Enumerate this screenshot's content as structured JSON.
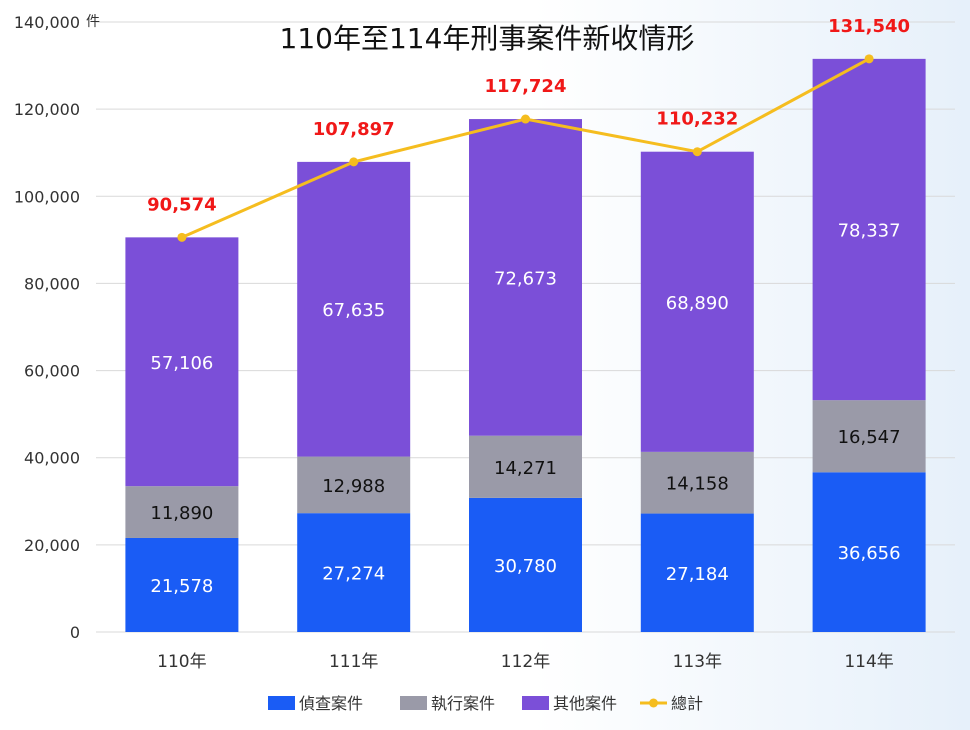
{
  "chart_data": {
    "type": "bar",
    "stacked": true,
    "title": "110年至114年刑事案件新收情形",
    "ylabel": "",
    "y_unit": "件",
    "categories": [
      "110年",
      "111年",
      "112年",
      "113年",
      "114年"
    ],
    "ylim": [
      0,
      140000
    ],
    "yticks": [
      0,
      20000,
      40000,
      60000,
      80000,
      100000,
      120000,
      140000
    ],
    "ytick_labels": [
      "0",
      "20,000",
      "40,000",
      "60,000",
      "80,000",
      "100,000",
      "120,000",
      "140,000"
    ],
    "grid": true,
    "legend_position": "bottom",
    "series": [
      {
        "name": "偵查案件",
        "kind": "bar",
        "color": "#1a5cf5",
        "label_color": "#ffffff",
        "values": [
          21578,
          27274,
          30780,
          27184,
          36656
        ],
        "labels": [
          "21,578",
          "27,274",
          "30,780",
          "27,184",
          "36,656"
        ]
      },
      {
        "name": "執行案件",
        "kind": "bar",
        "color": "#9a9aa8",
        "label_color": "#111111",
        "values": [
          11890,
          12988,
          14271,
          14158,
          16547
        ],
        "labels": [
          "11,890",
          "12,988",
          "14,271",
          "14,158",
          "16,547"
        ]
      },
      {
        "name": "其他案件",
        "kind": "bar",
        "color": "#7b4fd8",
        "label_color": "#ffffff",
        "values": [
          57106,
          67635,
          72673,
          68890,
          78337
        ],
        "labels": [
          "57,106",
          "67,635",
          "72,673",
          "68,890",
          "78,337"
        ]
      },
      {
        "name": "總計",
        "kind": "line",
        "color": "#f5bd1f",
        "label_color": "#f01818",
        "values": [
          90574,
          107897,
          117724,
          110232,
          131540
        ],
        "labels": [
          "90,574",
          "107,897",
          "117,724",
          "110,232",
          "131,540"
        ]
      }
    ]
  }
}
